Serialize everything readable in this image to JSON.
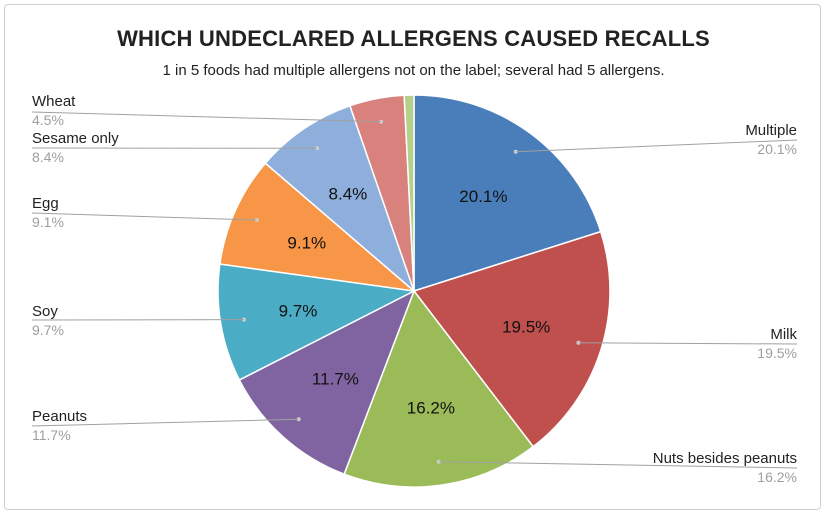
{
  "chart_data": {
    "type": "pie",
    "title": "WHICH UNDECLARED ALLERGENS CAUSED RECALLS",
    "subtitle": "1 in 5 foods had multiple allergens not on the label; several had 5 allergens.",
    "unit": "%",
    "slices": [
      {
        "name": "Multiple",
        "value": 20.1,
        "color": "#4a7ebb"
      },
      {
        "name": "Milk",
        "value": 19.5,
        "color": "#c0504d"
      },
      {
        "name": "Nuts besides peanuts",
        "value": 16.2,
        "color": "#9bbb59"
      },
      {
        "name": "Peanuts",
        "value": 11.7,
        "color": "#8064a2"
      },
      {
        "name": "Soy",
        "value": 9.7,
        "color": "#4bacc6"
      },
      {
        "name": "Egg",
        "value": 9.1,
        "color": "#f79646"
      },
      {
        "name": "Sesame only",
        "value": 8.4,
        "color": "#8eaedc"
      },
      {
        "name": "Wheat",
        "value": 4.5,
        "color": "#d9817d"
      },
      {
        "name": "",
        "value": 0.8,
        "color": "#b5d08b"
      }
    ],
    "legend": "callouts"
  }
}
